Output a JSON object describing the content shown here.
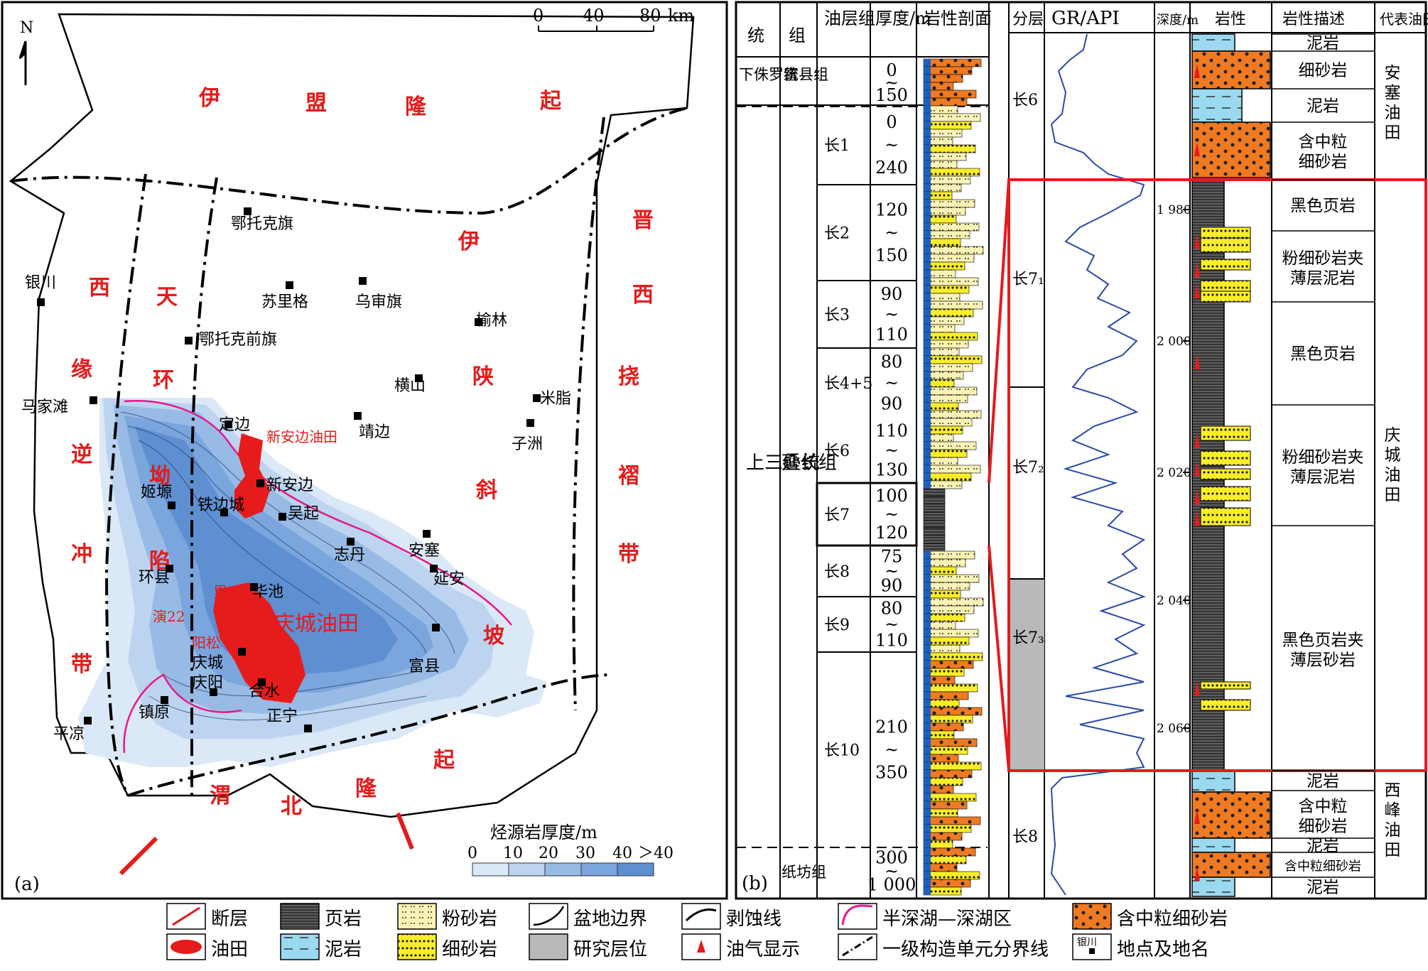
{
  "map": {
    "panel_label": "(a)",
    "north": "N",
    "scale": {
      "ticks": [
        "0",
        "40",
        "80"
      ],
      "unit": "km"
    },
    "regions": [
      {
        "text": "伊盟隆起",
        "color": "#e41b1b"
      },
      {
        "text": "晋西挠褶带",
        "color": "#e41b1b"
      },
      {
        "text": "伊陕斜坡",
        "color": "#e41b1b"
      },
      {
        "text": "西缘逆冲带",
        "color": "#e41b1b"
      },
      {
        "text": "天环坳陷",
        "color": "#e41b1b"
      },
      {
        "text": "渭北隆起",
        "color": "#e41b1b"
      }
    ],
    "towns": [
      "鄂托克旗",
      "苏里格",
      "乌审旗",
      "榆林",
      "鄂托克前旗",
      "银川",
      "横山",
      "米脂",
      "马家滩",
      "定边",
      "靖边",
      "子洲",
      "姬塬",
      "新安边",
      "铁边城",
      "吴起",
      "志丹",
      "安塞",
      "延安",
      "环县",
      "华池",
      "庆阳",
      "庆城",
      "合水",
      "富县",
      "平凉",
      "镇原",
      "正宁"
    ],
    "oilfields": [
      "新安边油田",
      "庆城油田"
    ],
    "wells": [
      "里57",
      "演22",
      "阳松"
    ],
    "thickness_legend": {
      "title": "烃源岩厚度/m",
      "ticks": [
        "0",
        "10",
        "20",
        "30",
        "40",
        "＞40"
      ],
      "colors": [
        "#dbe8f7",
        "#bcd4ef",
        "#98bbe5",
        "#7aa5dd",
        "#5e8fd1"
      ]
    }
  },
  "strat": {
    "panel_label": "(b)",
    "headers": [
      "统",
      "组",
      "油层组",
      "厚度/m",
      "岩性剖面"
    ],
    "systems": [
      "下侏罗统",
      "上三叠统"
    ],
    "formations": [
      "富县组",
      "延长组",
      "纸坊组"
    ],
    "members": [
      {
        "name": "",
        "thickness": [
          "0",
          "~",
          "150"
        ]
      },
      {
        "name": "长1",
        "thickness": [
          "0",
          "~",
          "240"
        ]
      },
      {
        "name": "长2",
        "thickness": [
          "120",
          "~",
          "150"
        ]
      },
      {
        "name": "长3",
        "thickness": [
          "90",
          "~",
          "110"
        ]
      },
      {
        "name": "长4+5",
        "thickness": [
          "80",
          "~",
          "90"
        ]
      },
      {
        "name": "长6",
        "thickness": [
          "110",
          "~",
          "130"
        ]
      },
      {
        "name": "长7",
        "thickness": [
          "100",
          "~",
          "120"
        ]
      },
      {
        "name": "长8",
        "thickness": [
          "75",
          "~",
          "90"
        ]
      },
      {
        "name": "长9",
        "thickness": [
          "80",
          "~",
          "110"
        ]
      },
      {
        "name": "长10",
        "thickness": [
          "210",
          "~",
          "350"
        ]
      },
      {
        "name": "",
        "thickness": [
          "300",
          "~",
          "1 000"
        ]
      }
    ]
  },
  "log": {
    "headers": [
      "分层",
      "GR/API",
      "深度/m",
      "岩性",
      "岩性描述",
      "代表油田"
    ],
    "depth_ticks": [
      "1 980",
      "2 000",
      "2 020",
      "2 040",
      "2 060"
    ],
    "layers": [
      "长6",
      "长7₁",
      "长7₂",
      "长7₃",
      "长8"
    ],
    "descriptions": [
      "泥岩",
      "细砂岩",
      "泥岩",
      "含中粒细砂岩",
      "黑色页岩",
      "粉细砂岩夹薄层泥岩",
      "黑色页岩",
      "粉细砂岩夹薄层泥岩",
      "黑色页岩夹薄层砂岩",
      "泥岩",
      "含中粒细砂岩",
      "泥岩",
      "含中粒细砂岩",
      "泥岩"
    ],
    "oilfields": [
      "安塞油田",
      "庆城油田",
      "西峰油田"
    ]
  },
  "legend": [
    "断层",
    "页岩",
    "粉砂岩",
    "盆地边界",
    "剥蚀线",
    "半深湖—深湖区",
    "含中粒细砂岩",
    "油田",
    "泥岩",
    "细砂岩",
    "研究层位",
    "油气显示",
    "一级构造单元分界线",
    "地点及地名"
  ],
  "legend_sample_label": "银川"
}
